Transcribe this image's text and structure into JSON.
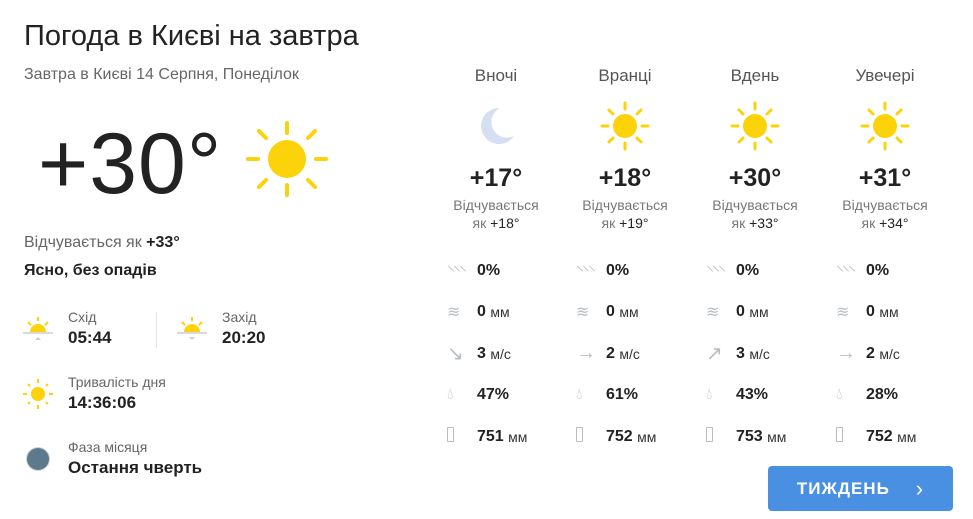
{
  "title": "Погода в Києві на завтра",
  "subtitle": "Завтра в Києві 14 Серпня, Понеділок",
  "current": {
    "temp": "+30°",
    "icon": "sun-icon",
    "feels_label": "Відчувається як",
    "feels_value": "+33°",
    "description": "Ясно, без опадів"
  },
  "sunrise": {
    "label": "Схід",
    "value": "05:44"
  },
  "sunset": {
    "label": "Захід",
    "value": "20:20"
  },
  "day_length": {
    "label": "Тривалість дня",
    "value": "14:36:06"
  },
  "moon": {
    "label": "Фаза місяця",
    "value": "Остання чверть"
  },
  "periods": [
    {
      "name": "Вночі",
      "icon": "moon-icon",
      "temp": "+17°",
      "feels_label": "Відчувається",
      "feels_prefix": "як",
      "feels": "+18°",
      "precip_prob": "0%",
      "precip": "0",
      "precip_unit": "мм",
      "wind": "3",
      "wind_unit": "м/с",
      "wind_dir": "↘",
      "humidity": "47%",
      "pressure": "751",
      "pressure_unit": "мм"
    },
    {
      "name": "Вранці",
      "icon": "sun-icon",
      "temp": "+18°",
      "feels_label": "Відчувається",
      "feels_prefix": "як",
      "feels": "+19°",
      "precip_prob": "0%",
      "precip": "0",
      "precip_unit": "мм",
      "wind": "2",
      "wind_unit": "м/с",
      "wind_dir": "→",
      "humidity": "61%",
      "pressure": "752",
      "pressure_unit": "мм"
    },
    {
      "name": "Вдень",
      "icon": "sun-icon",
      "temp": "+30°",
      "feels_label": "Відчувається",
      "feels_prefix": "як",
      "feels": "+33°",
      "precip_prob": "0%",
      "precip": "0",
      "precip_unit": "мм",
      "wind": "3",
      "wind_unit": "м/с",
      "wind_dir": "↗",
      "humidity": "43%",
      "pressure": "753",
      "pressure_unit": "мм"
    },
    {
      "name": "Увечері",
      "icon": "sun-icon",
      "temp": "+31°",
      "feels_label": "Відчувається",
      "feels_prefix": "як",
      "feels": "+34°",
      "precip_prob": "0%",
      "precip": "0",
      "precip_unit": "мм",
      "wind": "2",
      "wind_unit": "м/с",
      "wind_dir": "→",
      "humidity": "28%",
      "pressure": "752",
      "pressure_unit": "мм"
    }
  ],
  "week_button": "ТИЖДЕНЬ",
  "colors": {
    "sun": "#fcd20a",
    "accent": "#4a90e2",
    "moon": "#d6def2"
  }
}
